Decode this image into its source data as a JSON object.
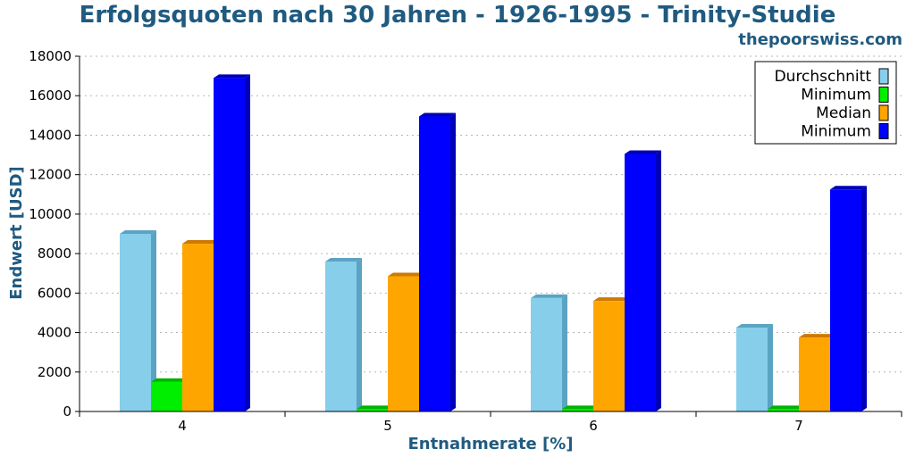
{
  "header": {
    "title": "Erfolgsquoten nach 30 Jahren - 1926-1995 - Trinity-Studie",
    "source": "thepoorswiss.com"
  },
  "chart_data": {
    "type": "bar",
    "title": "Erfolgsquoten nach 30 Jahren - 1926-1995 - Trinity-Studie",
    "xlabel": "Entnahmerate [%]",
    "ylabel": "Endwert [USD]",
    "categories": [
      "4",
      "5",
      "6",
      "7"
    ],
    "ylim": [
      0,
      18000
    ],
    "yticks": [
      0,
      2000,
      4000,
      6000,
      8000,
      10000,
      12000,
      14000,
      16000,
      18000
    ],
    "grid": true,
    "legend_position": "top-right",
    "series": [
      {
        "name": "Durchschnitt",
        "color": "#87ceeb",
        "side": "#5ba3c2",
        "values": [
          9000,
          7600,
          5750,
          4250
        ]
      },
      {
        "name": "Minimum",
        "color": "#00ee00",
        "side": "#00b300",
        "values": [
          1500,
          120,
          120,
          120
        ]
      },
      {
        "name": "Median",
        "color": "#ffa500",
        "side": "#cc7a00",
        "values": [
          8500,
          6850,
          5600,
          3750
        ]
      },
      {
        "name": "Minimum",
        "color": "#0000ff",
        "side": "#0000b8",
        "values": [
          16900,
          14950,
          13050,
          11250
        ]
      }
    ]
  }
}
